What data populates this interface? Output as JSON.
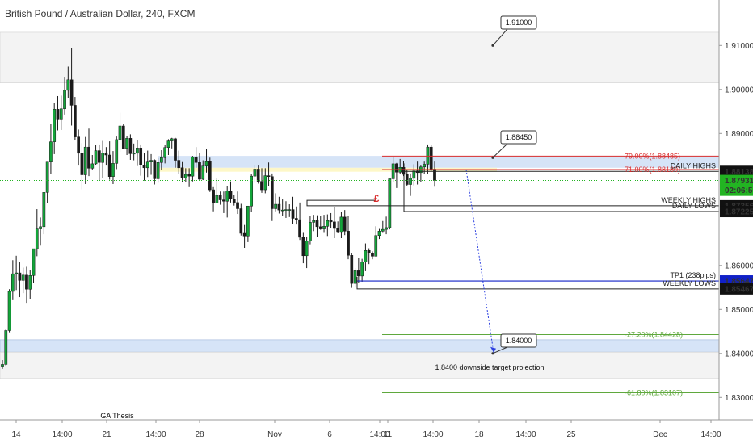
{
  "header": {
    "title": "British Pound / Australian Dollar, 240, FXCM"
  },
  "colors": {
    "bull": "#13a53a",
    "bear": "#1a1a1a",
    "zone_gray": "#f3f3f3",
    "zone_blue": "#d6e4f7",
    "zone_yellow": "#fdf7c8",
    "fib_red": "#d92d2d",
    "fib_green": "#5fa83d",
    "tp_blue": "#1020c8",
    "current_green": "#22b422"
  },
  "chart_data": {
    "type": "candlestick",
    "ylim": [
      1.825,
      1.925
    ],
    "y_ticks": [
      "1.91000",
      "1.90000",
      "1.89000",
      "1.86000",
      "1.85000",
      "1.84000",
      "1.83000"
    ],
    "x_ticks": [
      "14",
      "14:00",
      "21",
      "14:00",
      "28",
      "Nov",
      "6",
      "14:00",
      "11",
      "14:00",
      "18",
      "14:00",
      "25",
      "Dec",
      "14:00"
    ],
    "price_labels": [
      {
        "text": "1.88138",
        "value": 1.88138,
        "style": "black"
      },
      {
        "text": "1.87931",
        "value": 1.87931,
        "style": "green"
      },
      {
        "text": "02:06:56",
        "value": 1.87709,
        "style": "green"
      },
      {
        "text": "1.87356",
        "value": 1.87356,
        "style": "black"
      },
      {
        "text": "1.87225",
        "value": 1.87225,
        "style": "black"
      },
      {
        "text": "1.85647",
        "value": 1.85647,
        "style": "blue"
      },
      {
        "text": "1.85467",
        "value": 1.85467,
        "style": "black"
      }
    ],
    "levels": [
      {
        "label": "DAILY HIGHS",
        "value": 1.88138
      },
      {
        "label": "WEEKLY HIGHS",
        "value": 1.87356
      },
      {
        "label": "DAILY LOWS",
        "value": 1.87225
      },
      {
        "label": "TP1 (238pips)",
        "value": 1.85647
      },
      {
        "label": "WEEKLY LOWS",
        "value": 1.85467
      }
    ],
    "fibs": [
      {
        "label": "79.00%(1.88485)",
        "value": 1.88485,
        "color": "red"
      },
      {
        "label": "71.00%(1.88180)",
        "value": 1.8818,
        "color": "red"
      },
      {
        "label": "-27.20%(1.84428)",
        "value": 1.84428,
        "color": "green"
      },
      {
        "label": "-61.80%(1.83107)",
        "value": 1.83107,
        "color": "green"
      }
    ],
    "callouts": [
      {
        "text": "1.91000",
        "value": 1.91
      },
      {
        "text": "1.88450",
        "value": 1.8845
      },
      {
        "text": "1.84000",
        "value": 1.84
      }
    ],
    "annotations": {
      "projection": "1.8400 downside target projection",
      "thesis": "GA Thesis",
      "currency_symbol": "£"
    },
    "candles": [
      [
        1.8371,
        1.8385,
        1.8365,
        1.8375
      ],
      [
        1.8375,
        1.8456,
        1.8372,
        1.8452
      ],
      [
        1.8452,
        1.8546,
        1.8448,
        1.8541
      ],
      [
        1.8541,
        1.8612,
        1.8521,
        1.8581
      ],
      [
        1.8581,
        1.8622,
        1.8544,
        1.8583
      ],
      [
        1.8583,
        1.8607,
        1.8528,
        1.8566
      ],
      [
        1.8566,
        1.8595,
        1.8537,
        1.8578
      ],
      [
        1.8578,
        1.8597,
        1.8515,
        1.8546
      ],
      [
        1.8546,
        1.8589,
        1.8523,
        1.8577
      ],
      [
        1.8577,
        1.8638,
        1.856,
        1.8638
      ],
      [
        1.8638,
        1.8728,
        1.8621,
        1.8683
      ],
      [
        1.8683,
        1.8709,
        1.8645,
        1.8688
      ],
      [
        1.8688,
        1.8766,
        1.8671,
        1.8766
      ],
      [
        1.8766,
        1.8835,
        1.8742,
        1.8835
      ],
      [
        1.8835,
        1.8921,
        1.8807,
        1.8881
      ],
      [
        1.8881,
        1.8969,
        1.8853,
        1.8955
      ],
      [
        1.8955,
        1.8985,
        1.8907,
        1.8931
      ],
      [
        1.8931,
        1.8986,
        1.8908,
        1.8956
      ],
      [
        1.8956,
        1.9027,
        1.8943,
        1.8998
      ],
      [
        1.8998,
        1.9052,
        1.8981,
        1.9022
      ],
      [
        1.9022,
        1.9094,
        1.8918,
        1.8964
      ],
      [
        1.8964,
        1.8983,
        1.8884,
        1.8892
      ],
      [
        1.8892,
        1.8909,
        1.8827,
        1.8855
      ],
      [
        1.8855,
        1.8878,
        1.8773,
        1.8806
      ],
      [
        1.8806,
        1.8892,
        1.8785,
        1.8869
      ],
      [
        1.8869,
        1.8911,
        1.8803,
        1.8821
      ],
      [
        1.8821,
        1.8851,
        1.8818,
        1.8831
      ],
      [
        1.8831,
        1.8873,
        1.8829,
        1.8861
      ],
      [
        1.8861,
        1.8875,
        1.8793,
        1.8834
      ],
      [
        1.8834,
        1.8883,
        1.8798,
        1.8856
      ],
      [
        1.8856,
        1.8869,
        1.8827,
        1.8851
      ],
      [
        1.8851,
        1.8882,
        1.8795,
        1.8802
      ],
      [
        1.8802,
        1.886,
        1.8785,
        1.8832
      ],
      [
        1.8832,
        1.8893,
        1.8819,
        1.8886
      ],
      [
        1.8886,
        1.8948,
        1.8858,
        1.8917
      ],
      [
        1.8917,
        1.8921,
        1.8865,
        1.8866
      ],
      [
        1.8866,
        1.8895,
        1.8851,
        1.8889
      ],
      [
        1.8889,
        1.8898,
        1.884,
        1.8854
      ],
      [
        1.8854,
        1.8877,
        1.8839,
        1.8855
      ],
      [
        1.8855,
        1.8885,
        1.8826,
        1.8867
      ],
      [
        1.8867,
        1.8875,
        1.8804,
        1.8828
      ],
      [
        1.8828,
        1.8855,
        1.8793,
        1.8822
      ],
      [
        1.8822,
        1.8861,
        1.8801,
        1.8835
      ],
      [
        1.8835,
        1.8853,
        1.8806,
        1.8839
      ],
      [
        1.8839,
        1.8841,
        1.8784,
        1.8797
      ],
      [
        1.8797,
        1.8844,
        1.8788,
        1.8834
      ],
      [
        1.8834,
        1.8862,
        1.8818,
        1.8845
      ],
      [
        1.8845,
        1.8873,
        1.8832,
        1.8868
      ],
      [
        1.8868,
        1.8887,
        1.8851,
        1.8883
      ],
      [
        1.8883,
        1.889,
        1.8866,
        1.8888
      ],
      [
        1.8888,
        1.889,
        1.8822,
        1.8839
      ],
      [
        1.8839,
        1.8861,
        1.8808,
        1.8822
      ],
      [
        1.8822,
        1.8835,
        1.8789,
        1.8799
      ],
      [
        1.8799,
        1.8821,
        1.8789,
        1.8807
      ],
      [
        1.8807,
        1.8821,
        1.8778,
        1.8803
      ],
      [
        1.8803,
        1.8849,
        1.8791,
        1.8846
      ],
      [
        1.8846,
        1.8869,
        1.8822,
        1.8834
      ],
      [
        1.8834,
        1.8856,
        1.8794,
        1.8796
      ],
      [
        1.8796,
        1.8839,
        1.8794,
        1.8826
      ],
      [
        1.8826,
        1.8865,
        1.8811,
        1.8836
      ],
      [
        1.8836,
        1.8845,
        1.8767,
        1.8772
      ],
      [
        1.8772,
        1.8778,
        1.8723,
        1.8742
      ],
      [
        1.8742,
        1.8798,
        1.8741,
        1.8759
      ],
      [
        1.8759,
        1.8768,
        1.8738,
        1.8749
      ],
      [
        1.8749,
        1.8768,
        1.8719,
        1.8746
      ],
      [
        1.8746,
        1.878,
        1.8709,
        1.8769
      ],
      [
        1.8769,
        1.8791,
        1.8743,
        1.8751
      ],
      [
        1.8751,
        1.876,
        1.8736,
        1.8743
      ],
      [
        1.8743,
        1.8768,
        1.8717,
        1.8729
      ],
      [
        1.8729,
        1.874,
        1.8668,
        1.8673
      ],
      [
        1.8673,
        1.8692,
        1.864,
        1.8667
      ],
      [
        1.8667,
        1.8735,
        1.8653,
        1.8735
      ],
      [
        1.8735,
        1.8807,
        1.8721,
        1.8803
      ],
      [
        1.8803,
        1.8829,
        1.8788,
        1.8819
      ],
      [
        1.8819,
        1.8827,
        1.8786,
        1.8791
      ],
      [
        1.8791,
        1.8821,
        1.8765,
        1.8772
      ],
      [
        1.8772,
        1.8821,
        1.8764,
        1.8804
      ],
      [
        1.8804,
        1.8834,
        1.878,
        1.8802
      ],
      [
        1.8802,
        1.8809,
        1.8701,
        1.8729
      ],
      [
        1.8729,
        1.8764,
        1.8723,
        1.8739
      ],
      [
        1.8739,
        1.8756,
        1.8718,
        1.8726
      ],
      [
        1.8726,
        1.875,
        1.8712,
        1.8726
      ],
      [
        1.8726,
        1.8746,
        1.8708,
        1.8727
      ],
      [
        1.8727,
        1.8739,
        1.871,
        1.8727
      ],
      [
        1.8727,
        1.8756,
        1.8695,
        1.8707
      ],
      [
        1.8707,
        1.8734,
        1.8693,
        1.8704
      ],
      [
        1.8704,
        1.8743,
        1.8658,
        1.8664
      ],
      [
        1.8664,
        1.8674,
        1.8605,
        1.8622
      ],
      [
        1.8622,
        1.8665,
        1.8594,
        1.8656
      ],
      [
        1.8656,
        1.8712,
        1.8648,
        1.8698
      ],
      [
        1.8698,
        1.8715,
        1.8678,
        1.8702
      ],
      [
        1.8702,
        1.8714,
        1.8664,
        1.8688
      ],
      [
        1.8688,
        1.8712,
        1.8681,
        1.8683
      ],
      [
        1.8683,
        1.8715,
        1.8674,
        1.8689
      ],
      [
        1.8689,
        1.8716,
        1.8667,
        1.8702
      ],
      [
        1.8702,
        1.8719,
        1.8684,
        1.8699
      ],
      [
        1.8699,
        1.8732,
        1.8662,
        1.8684
      ],
      [
        1.8684,
        1.87,
        1.8673,
        1.8675
      ],
      [
        1.8675,
        1.8722,
        1.8662,
        1.871
      ],
      [
        1.871,
        1.8726,
        1.8669,
        1.8678
      ],
      [
        1.8678,
        1.8713,
        1.8614,
        1.8623
      ],
      [
        1.8623,
        1.8628,
        1.8549,
        1.8559
      ],
      [
        1.8559,
        1.8594,
        1.8551,
        1.8588
      ],
      [
        1.8588,
        1.8617,
        1.8561,
        1.8576
      ],
      [
        1.8576,
        1.8615,
        1.8563,
        1.8608
      ],
      [
        1.8608,
        1.865,
        1.8587,
        1.8634
      ],
      [
        1.8634,
        1.8639,
        1.8603,
        1.8628
      ],
      [
        1.8628,
        1.8632,
        1.8614,
        1.8621
      ],
      [
        1.8621,
        1.8689,
        1.8621,
        1.8668
      ],
      [
        1.8668,
        1.8683,
        1.866,
        1.8678
      ],
      [
        1.8678,
        1.8701,
        1.8674,
        1.8682
      ],
      [
        1.8682,
        1.8711,
        1.8671,
        1.8686
      ],
      [
        1.8686,
        1.8797,
        1.8682,
        1.8797
      ],
      [
        1.8797,
        1.8846,
        1.8789,
        1.8831
      ],
      [
        1.8831,
        1.8833,
        1.8776,
        1.8812
      ],
      [
        1.8812,
        1.8842,
        1.8808,
        1.8823
      ],
      [
        1.8823,
        1.8838,
        1.8803,
        1.8807
      ],
      [
        1.8807,
        1.8819,
        1.8781,
        1.8784
      ],
      [
        1.8784,
        1.8809,
        1.8758,
        1.8798
      ],
      [
        1.8798,
        1.883,
        1.8782,
        1.8815
      ],
      [
        1.8815,
        1.8836,
        1.8784,
        1.8811
      ],
      [
        1.8811,
        1.8827,
        1.8789,
        1.8824
      ],
      [
        1.8824,
        1.8836,
        1.8808,
        1.883
      ],
      [
        1.883,
        1.8875,
        1.8808,
        1.8869
      ],
      [
        1.8869,
        1.8874,
        1.8815,
        1.8819
      ],
      [
        1.8819,
        1.8836,
        1.8779,
        1.8793
      ]
    ]
  }
}
